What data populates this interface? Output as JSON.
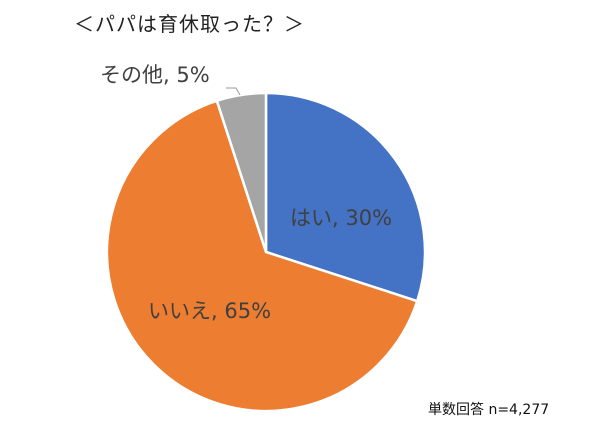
{
  "chart_data": {
    "type": "pie",
    "title": "＜パパは育休取った？＞",
    "note": "単数回答 n=4,277",
    "slices": [
      {
        "label": "はい",
        "value": 30,
        "text": "はい, 30%",
        "color": "#4472C4"
      },
      {
        "label": "いいえ",
        "value": 65,
        "text": "いいえ, 65%",
        "color": "#ED7D31"
      },
      {
        "label": "その他",
        "value": 5,
        "text": "その他, 5%",
        "color": "#A5A5A5"
      }
    ]
  }
}
